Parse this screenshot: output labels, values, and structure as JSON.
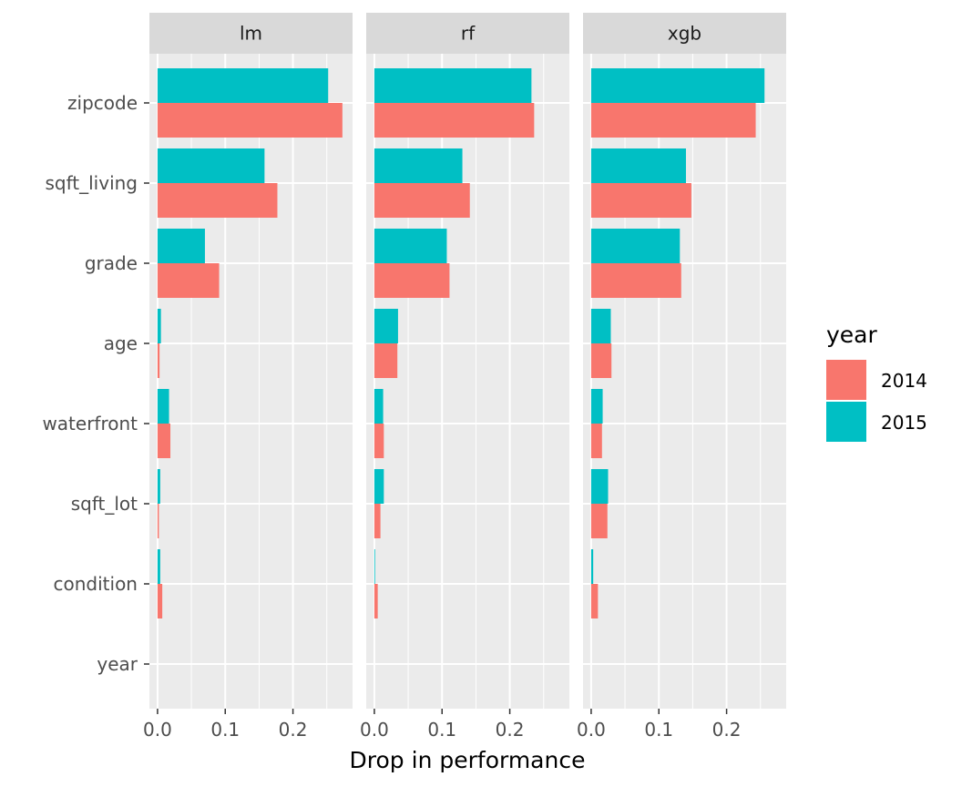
{
  "chart_data": {
    "type": "bar",
    "orientation": "horizontal",
    "facet_variable": "model",
    "facets": [
      "lm",
      "rf",
      "xgb"
    ],
    "categories": [
      "zipcode",
      "sqft_living",
      "grade",
      "age",
      "waterfront",
      "sqft_lot",
      "condition",
      "year"
    ],
    "xlabel": "Drop in performance",
    "ylabel": "",
    "xlim": [
      -0.012,
      0.288
    ],
    "xticks": [
      0.0,
      0.1,
      0.2
    ],
    "xtick_labels": [
      "0.0",
      "0.1",
      "0.2"
    ],
    "grid": true,
    "legend": {
      "title": "year",
      "position": "right",
      "entries": [
        {
          "label": "2014",
          "color": "#F8766D"
        },
        {
          "label": "2015",
          "color": "#00BFC4"
        }
      ]
    },
    "series": [
      {
        "name": "2014",
        "color": "#F8766D",
        "values": {
          "lm": [
            0.273,
            0.177,
            0.091,
            0.003,
            0.019,
            0.002,
            0.007,
            0.0
          ],
          "rf": [
            0.236,
            0.141,
            0.111,
            0.034,
            0.014,
            0.009,
            0.005,
            0.0
          ],
          "xgb": [
            0.243,
            0.148,
            0.133,
            0.03,
            0.016,
            0.024,
            0.01,
            0.0
          ]
        }
      },
      {
        "name": "2015",
        "color": "#00BFC4",
        "values": {
          "lm": [
            0.252,
            0.158,
            0.07,
            0.005,
            0.017,
            0.004,
            0.004,
            0.0
          ],
          "rf": [
            0.232,
            0.13,
            0.107,
            0.035,
            0.013,
            0.014,
            0.001,
            0.0
          ],
          "xgb": [
            0.256,
            0.14,
            0.131,
            0.029,
            0.017,
            0.025,
            0.003,
            0.0
          ]
        }
      }
    ]
  },
  "colors": {
    "panel_background": "#EBEBEB",
    "strip_background": "#D9D9D9",
    "grid_line": "#FFFFFF"
  }
}
